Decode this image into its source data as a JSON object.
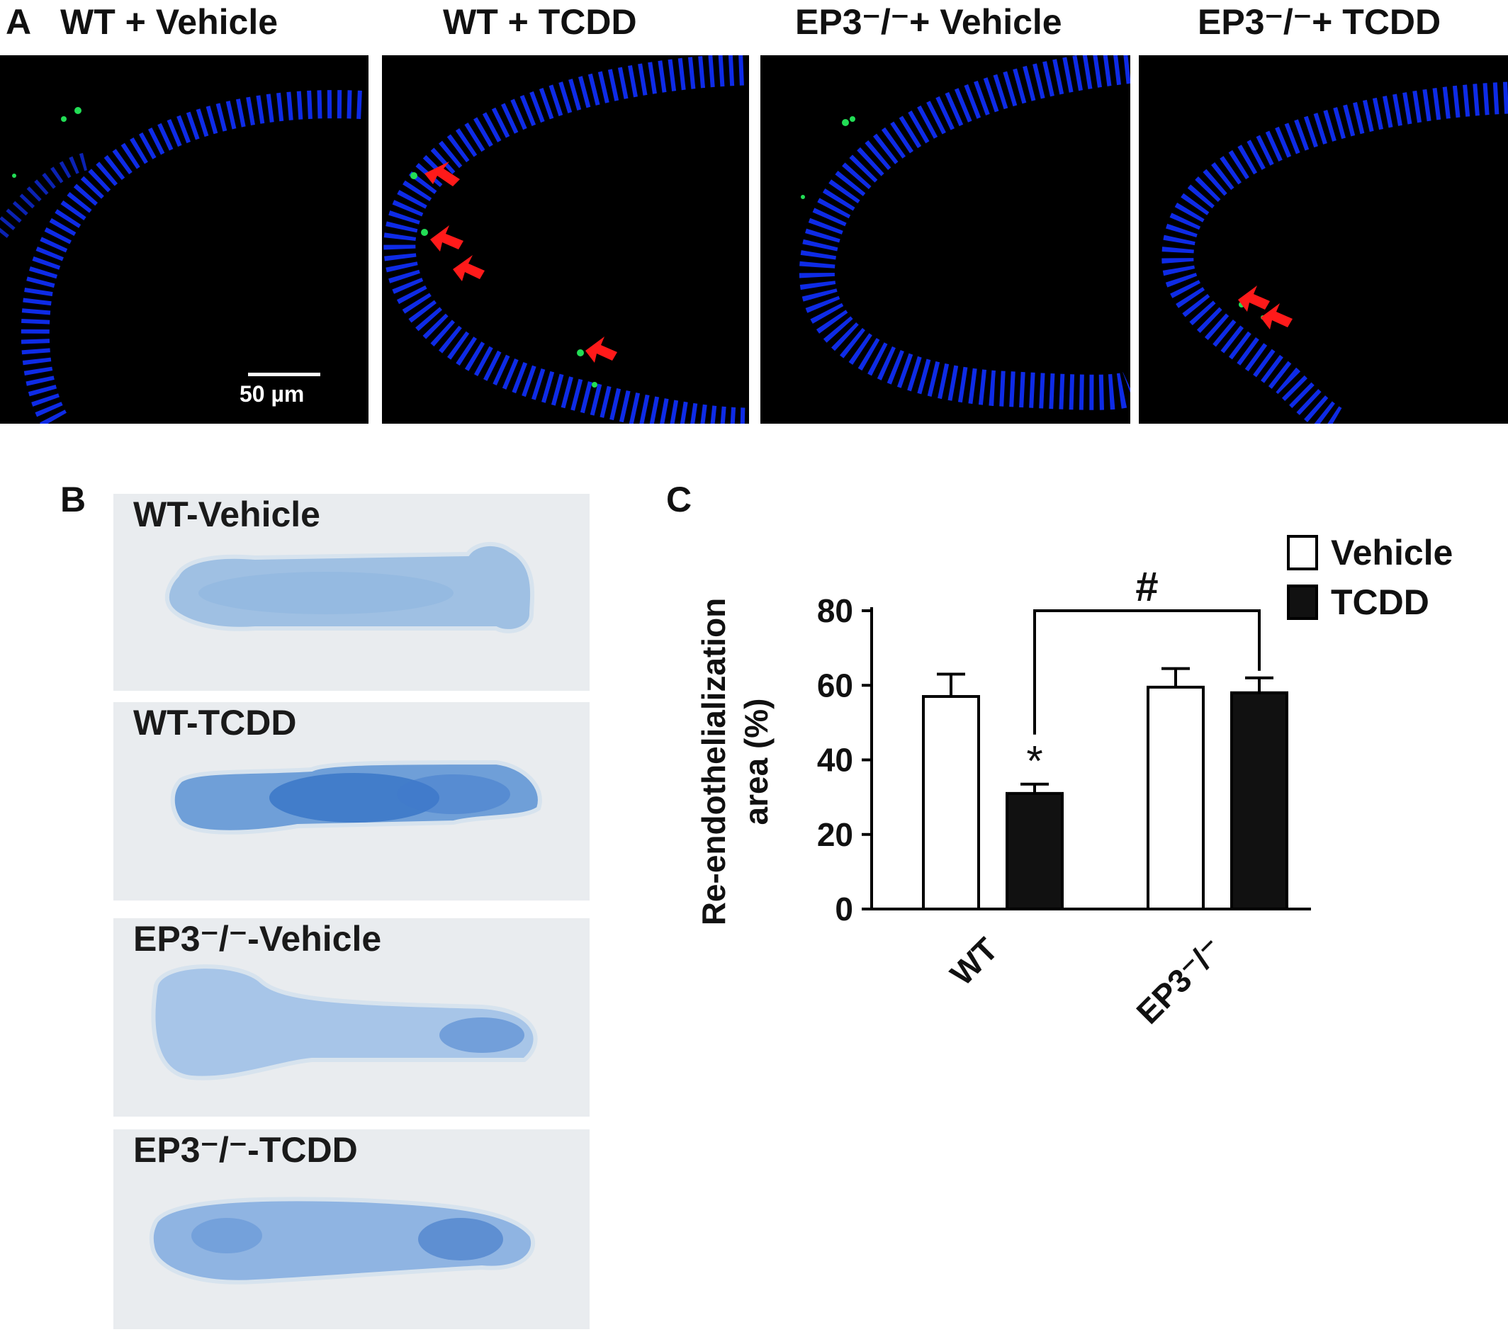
{
  "panel_a": {
    "letter": "A",
    "columns": [
      {
        "title": "WT + Vehicle"
      },
      {
        "title": "WT + TCDD"
      },
      {
        "title": "EP3⁻/⁻+ Vehicle"
      },
      {
        "title": "EP3⁻/⁻+ TCDD"
      }
    ],
    "scale_bar_label": "50 µm",
    "colors": {
      "nuclei": "#1030ff",
      "signal": "#22dd55",
      "arrow": "#ff1a1a",
      "background": "#000000"
    }
  },
  "panel_b": {
    "letter": "B",
    "labels": [
      "WT-Vehicle",
      "WT-TCDD",
      "EP3⁻/⁻-Vehicle",
      "EP3⁻/⁻-TCDD"
    ]
  },
  "panel_c": {
    "letter": "C"
  },
  "chart_data": {
    "type": "bar",
    "categories": [
      "WT",
      "EP3⁻/⁻"
    ],
    "series": [
      {
        "name": "Vehicle",
        "values": [
          57,
          59.5
        ],
        "errors": [
          6,
          5
        ],
        "color": "#ffffff"
      },
      {
        "name": "TCDD",
        "values": [
          31,
          58
        ],
        "errors": [
          2.5,
          4
        ],
        "color": "#111111"
      }
    ],
    "ylabel_line1": "Re-endothelialization",
    "ylabel_line2": "area (%)",
    "yticks": [
      0,
      20,
      40,
      60,
      80
    ],
    "ylim": [
      0,
      80
    ],
    "annotations": {
      "star": "*",
      "hash": "#"
    },
    "legend": "top-right",
    "grid": false
  }
}
